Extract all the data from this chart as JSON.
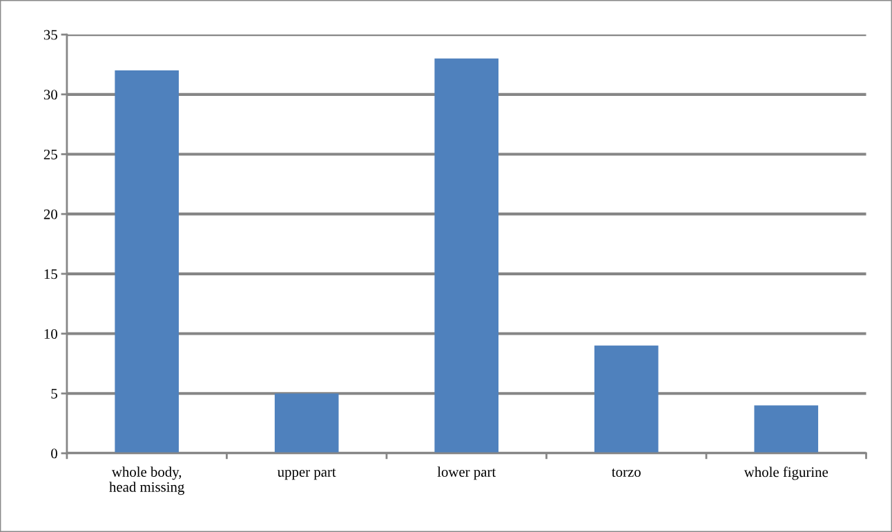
{
  "chart_data": {
    "type": "bar",
    "categories": [
      "whole body,\nhead missing",
      "upper part",
      "lower part",
      "torzo",
      "whole figurine"
    ],
    "values": [
      32,
      5,
      33,
      9,
      4
    ],
    "color": "#4f81bd",
    "ylim": [
      0,
      35
    ],
    "yticks": [
      0,
      5,
      10,
      15,
      20,
      25,
      30,
      35
    ],
    "grid": "y",
    "legend": false
  }
}
